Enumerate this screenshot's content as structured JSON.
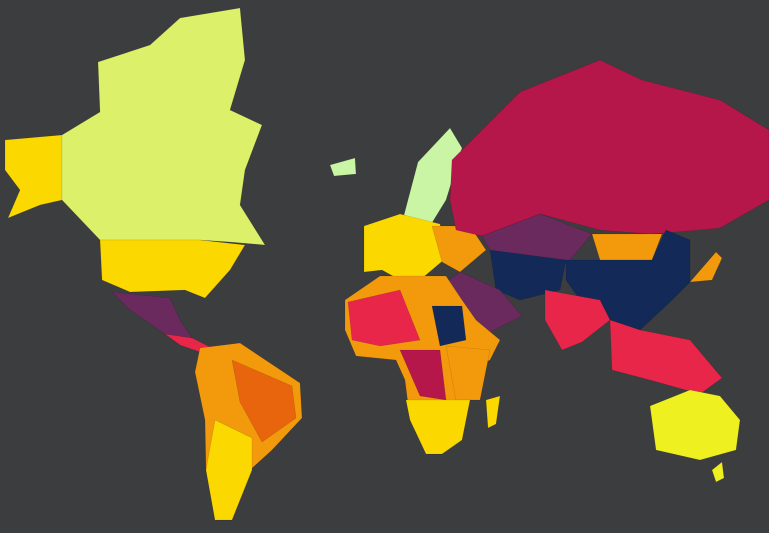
{
  "map": {
    "type": "choropleth",
    "background": "#3c3d3f",
    "palette": [
      "#ddf06a",
      "#fbd900",
      "#eef020",
      "#f39a0c",
      "#e8650d",
      "#e8264a",
      "#b5174a",
      "#6b2a5e",
      "#132a58",
      "#c9f5a4"
    ]
  }
}
